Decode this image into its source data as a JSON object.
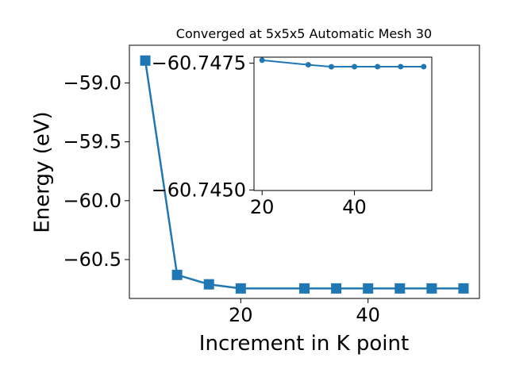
{
  "chart_data": [
    {
      "type": "line",
      "role": "main",
      "title": "Converged at 5x5x5 Automatic Mesh 30",
      "xlabel": "Increment in K point",
      "ylabel": "Energy (eV)",
      "x": [
        5,
        10,
        15,
        20,
        30,
        35,
        40,
        45,
        50,
        55
      ],
      "series": [
        {
          "values": [
            -58.81,
            -60.63,
            -60.71,
            -60.745,
            -60.745,
            -60.745,
            -60.745,
            -60.745,
            -60.745,
            -60.745
          ]
        }
      ],
      "marker": "square",
      "xlim": [
        2.5,
        57.5
      ],
      "ylim": [
        -60.83,
        -58.68
      ],
      "xticks": [
        20,
        40
      ],
      "xtick_labels": [
        "20",
        "40"
      ],
      "yticks": [
        -59.0,
        -59.5,
        -60.0,
        -60.5
      ],
      "ytick_labels": [
        "−59.0",
        "−59.5",
        "−60.0",
        "−60.5"
      ],
      "grid": false,
      "color": "#1f77b4"
    },
    {
      "type": "line",
      "role": "inset",
      "x": [
        20,
        30,
        35,
        40,
        45,
        50,
        55
      ],
      "series": [
        {
          "values": [
            -60.74756,
            -60.74747,
            -60.74743,
            -60.747432,
            -60.747433,
            -60.747433,
            -60.747433
          ]
        }
      ],
      "marker": "circle",
      "xlim": [
        18.25,
        56.75
      ],
      "ylim": [
        -60.74499,
        -60.74762
      ],
      "xticks": [
        20,
        40
      ],
      "xtick_labels": [
        "20",
        "40"
      ],
      "yticks": [
        -60.7475,
        -60.745
      ],
      "ytick_labels": [
        "−60.7475",
        "−60.7450"
      ],
      "grid": false,
      "color": "#1f77b4"
    }
  ]
}
